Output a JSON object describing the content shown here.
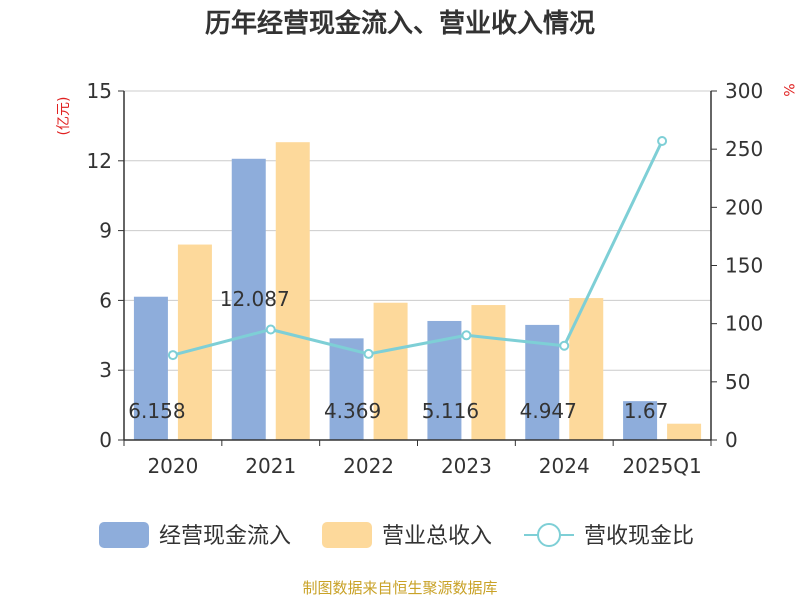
{
  "chart_data": {
    "type": "bar",
    "title": "历年经营现金流入、营业收入情况",
    "categories": [
      "2020",
      "2021",
      "2022",
      "2023",
      "2024",
      "2025Q1"
    ],
    "y_left": {
      "unit": "(亿元)",
      "ticks": [
        "0",
        "3",
        "6",
        "9",
        "12",
        "15"
      ],
      "ylim": [
        0,
        15
      ]
    },
    "y_right": {
      "unit": "%",
      "ticks": [
        "0",
        "50",
        "100",
        "150",
        "200",
        "250",
        "300"
      ],
      "ylim": [
        0,
        300
      ]
    },
    "grid": true,
    "legend_position": "bottom",
    "series": [
      {
        "name": "经营现金流入",
        "kind": "bar",
        "axis": "left",
        "color": "#8eaddb",
        "values": [
          6.158,
          12.087,
          4.369,
          5.116,
          4.947,
          1.67
        ],
        "labels": [
          "6.158",
          "12.087",
          "4.369",
          "5.116",
          "4.947",
          "1.67"
        ]
      },
      {
        "name": "营业总收入",
        "kind": "bar",
        "axis": "left",
        "color": "#fdd99b",
        "values": [
          8.4,
          12.8,
          5.9,
          5.8,
          6.1,
          0.7
        ]
      },
      {
        "name": "营收现金比",
        "kind": "line",
        "axis": "right",
        "color": "#7ecfd6",
        "values": [
          73,
          95,
          74,
          90,
          81,
          257
        ]
      }
    ]
  },
  "source": "制图数据来自恒生聚源数据库"
}
